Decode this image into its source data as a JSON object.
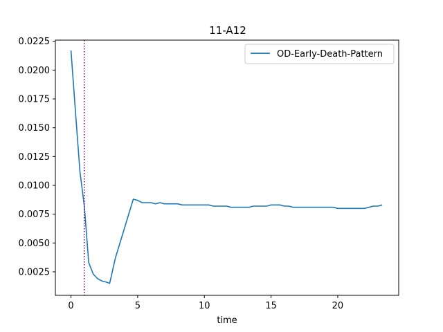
{
  "chart_data": {
    "type": "line",
    "title": "11-A12",
    "xlabel": "time",
    "ylabel": "",
    "xlim": [
      -1.17,
      24.57
    ],
    "ylim": [
      0.00046,
      0.0226
    ],
    "xticks": [
      0,
      5,
      10,
      15,
      20
    ],
    "xtick_labels": [
      "0",
      "5",
      "10",
      "15",
      "20"
    ],
    "yticks": [
      0.0025,
      0.005,
      0.0075,
      0.01,
      0.0125,
      0.015,
      0.0175,
      0.02,
      0.0225
    ],
    "ytick_labels": [
      "0.0025",
      "0.0050",
      "0.0075",
      "0.0100",
      "0.0125",
      "0.0150",
      "0.0175",
      "0.0200",
      "0.0225"
    ],
    "legend_position": "top-right",
    "grid": false,
    "vline": {
      "x": 1.0,
      "style": "dotted",
      "color": "#800080"
    },
    "series": [
      {
        "name": "OD-Early-Death-Pattern",
        "color": "#1f77b4",
        "x": [
          0,
          0.33,
          0.67,
          1.0,
          1.33,
          1.67,
          2.0,
          2.33,
          2.67,
          2.9,
          3.33,
          4.67,
          5.0,
          5.33,
          5.67,
          6.0,
          6.33,
          6.67,
          7.0,
          7.33,
          7.67,
          8.0,
          8.33,
          8.67,
          9.0,
          9.33,
          9.67,
          10.0,
          10.33,
          10.67,
          11.0,
          11.33,
          11.67,
          12.0,
          12.33,
          12.67,
          13.0,
          13.33,
          13.67,
          14.0,
          14.33,
          14.67,
          15.0,
          15.33,
          15.67,
          16.0,
          16.33,
          16.67,
          17.0,
          17.33,
          17.67,
          18.0,
          18.33,
          18.67,
          19.0,
          19.33,
          19.67,
          20.0,
          20.33,
          20.67,
          21.0,
          21.33,
          21.67,
          22.0,
          22.33,
          22.67,
          23.0,
          23.33
        ],
        "y": [
          0.0217,
          0.0165,
          0.0112,
          0.0082,
          0.0033,
          0.0023,
          0.0019,
          0.0017,
          0.0016,
          0.0015,
          0.0037,
          0.0088,
          0.0087,
          0.0085,
          0.0085,
          0.0085,
          0.0084,
          0.0085,
          0.0084,
          0.0084,
          0.0084,
          0.0084,
          0.0083,
          0.0083,
          0.0083,
          0.0083,
          0.0083,
          0.0083,
          0.0083,
          0.0082,
          0.0082,
          0.0082,
          0.0082,
          0.0081,
          0.0081,
          0.0081,
          0.0081,
          0.0081,
          0.0082,
          0.0082,
          0.0082,
          0.0082,
          0.0083,
          0.0083,
          0.0083,
          0.0082,
          0.0082,
          0.0081,
          0.0081,
          0.0081,
          0.0081,
          0.0081,
          0.0081,
          0.0081,
          0.0081,
          0.0081,
          0.0081,
          0.008,
          0.008,
          0.008,
          0.008,
          0.008,
          0.008,
          0.008,
          0.0081,
          0.0082,
          0.0082,
          0.0083
        ]
      }
    ]
  }
}
